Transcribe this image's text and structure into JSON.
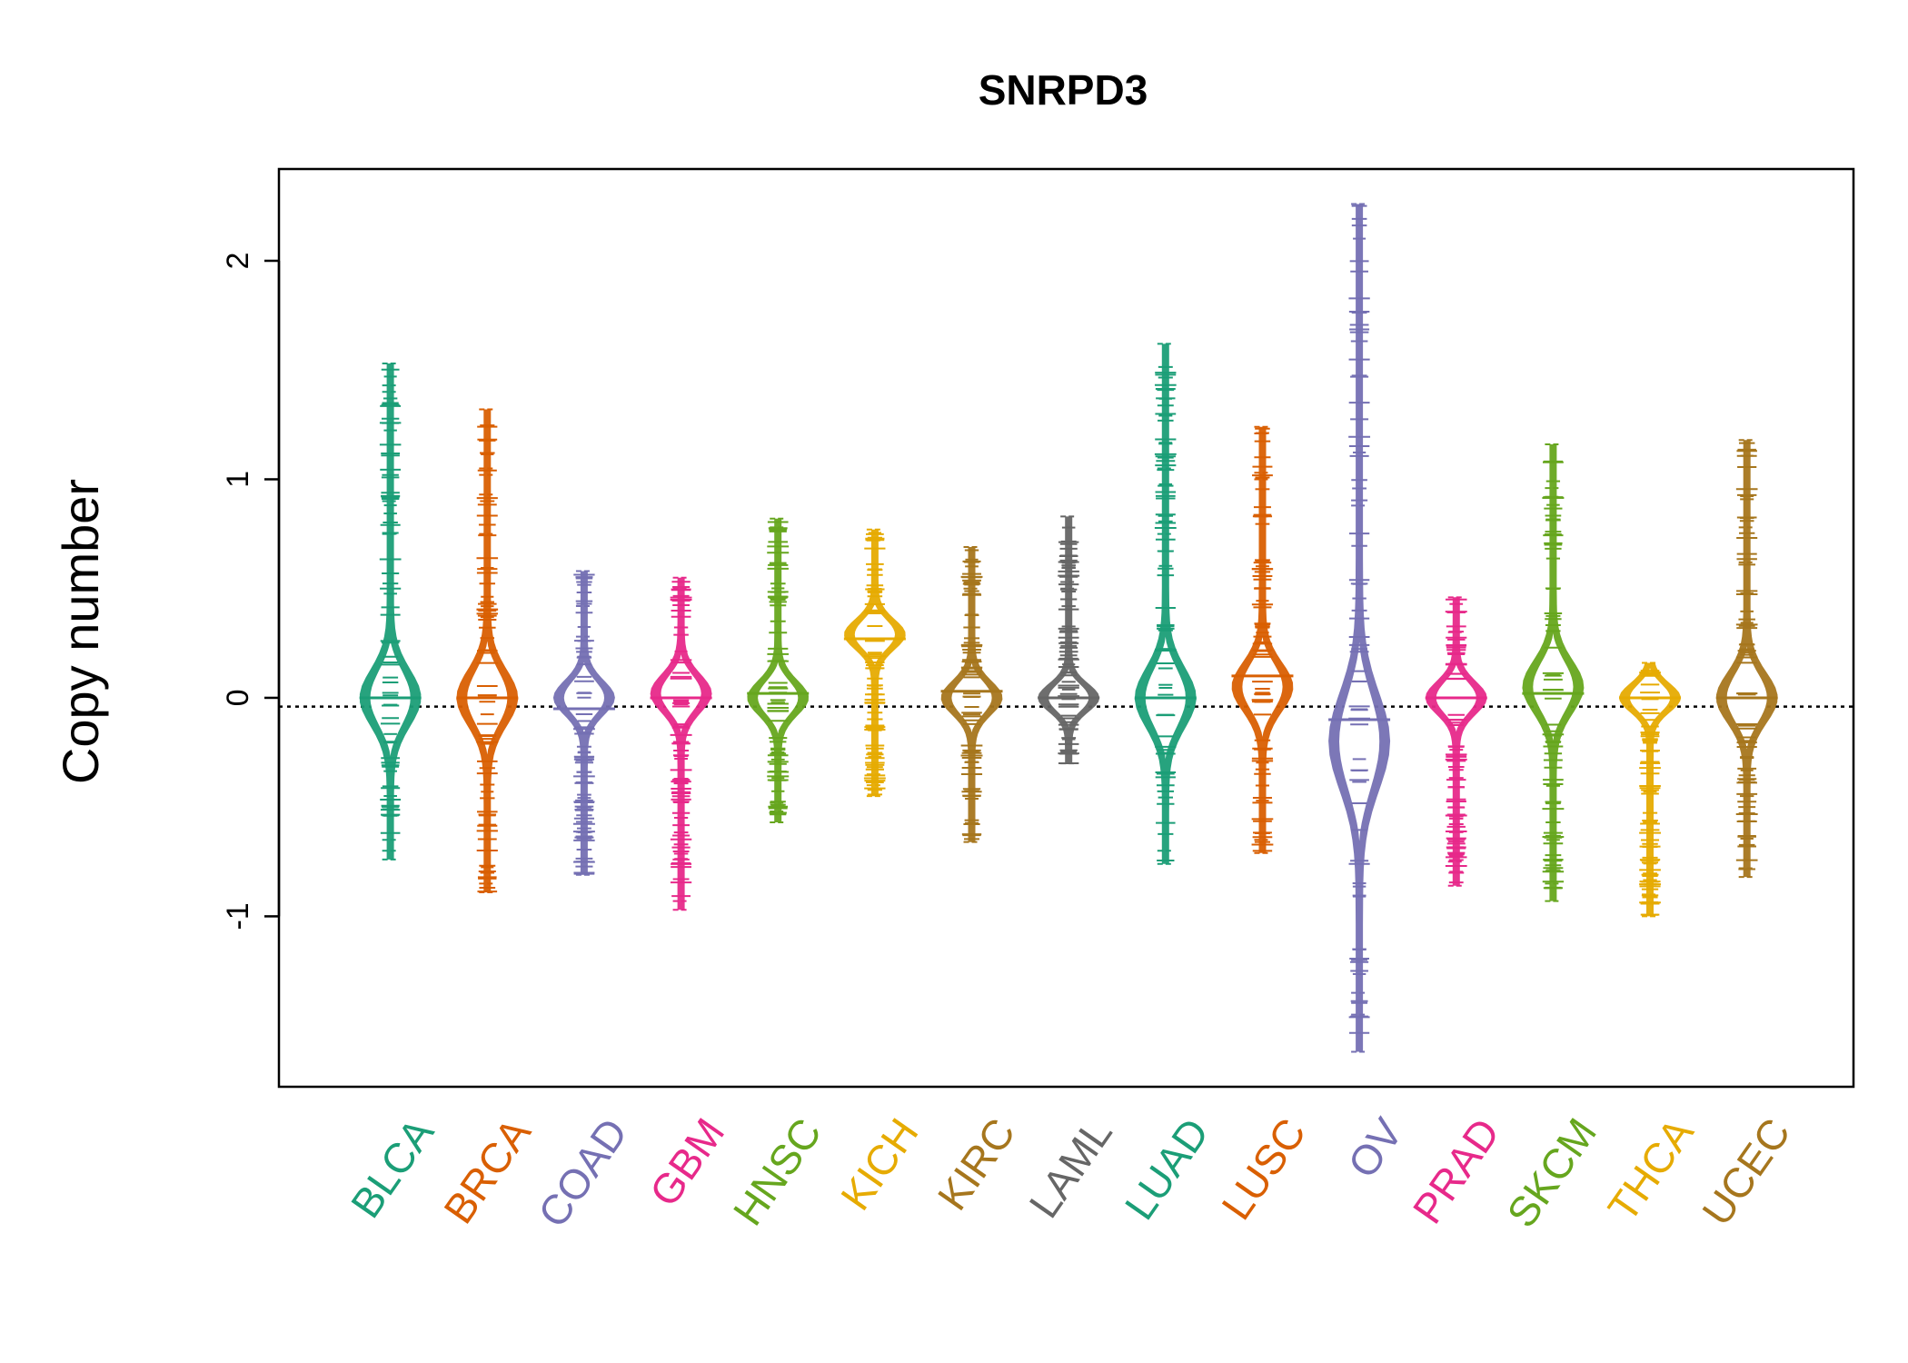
{
  "chart_data": {
    "type": "beanplot",
    "title": "SNRPD3",
    "xlabel": "",
    "ylabel": "Copy number",
    "ylim": [
      -1.78,
      2.42
    ],
    "yticks": [
      -1,
      0,
      1,
      2
    ],
    "ytick_labels": [
      "-1",
      "0",
      "1",
      "2"
    ],
    "reference_line": -0.04,
    "grid": false,
    "legend": "none",
    "categories": [
      "BLCA",
      "BRCA",
      "COAD",
      "GBM",
      "HNSC",
      "KICH",
      "KIRC",
      "LAML",
      "LUAD",
      "LUSC",
      "OV",
      "PRAD",
      "SKCM",
      "THCA",
      "UCEC"
    ],
    "colors": [
      "#1B9E77",
      "#D95F02",
      "#7570B3",
      "#E7298A",
      "#66A61E",
      "#E6AB02",
      "#A6761D",
      "#666666",
      "#1B9E77",
      "#D95F02",
      "#7570B3",
      "#E7298A",
      "#66A61E",
      "#E6AB02",
      "#A6761D"
    ],
    "series": [
      {
        "category": "BLCA",
        "min": -0.74,
        "max": 1.53,
        "median": 0.0,
        "mode": 0.0,
        "extreme_points": [
          1.53,
          1.43,
          1.4,
          0.92,
          0.9,
          0.75,
          -0.65,
          -0.7,
          -0.74
        ]
      },
      {
        "category": "BRCA",
        "min": -0.89,
        "max": 1.32,
        "median": 0.0,
        "mode": 0.0,
        "extreme_points": [
          1.32,
          1.05,
          1.02,
          0.93,
          0.75,
          -0.85,
          -0.89
        ]
      },
      {
        "category": "COAD",
        "min": -0.81,
        "max": 0.58,
        "median": -0.05,
        "mode": 0.0,
        "extreme_points": [
          0.58,
          0.42,
          0.28,
          -0.75,
          -0.81
        ]
      },
      {
        "category": "GBM",
        "min": -0.97,
        "max": 0.55,
        "median": 0.0,
        "mode": 0.02,
        "extreme_points": [
          0.55,
          0.5,
          -0.93,
          -0.97
        ]
      },
      {
        "category": "HNSC",
        "min": -0.57,
        "max": 0.82,
        "median": 0.02,
        "mode": 0.0,
        "extreme_points": [
          0.82,
          0.78,
          -0.48,
          -0.52,
          -0.57
        ]
      },
      {
        "category": "KICH",
        "min": -0.45,
        "max": 0.77,
        "median": 0.27,
        "mode": 0.29,
        "extreme_points": [
          0.77,
          0.72,
          -0.35,
          -0.4,
          -0.45
        ]
      },
      {
        "category": "KIRC",
        "min": -0.66,
        "max": 0.69,
        "median": 0.03,
        "mode": 0.0,
        "extreme_points": [
          0.69,
          0.5,
          -0.45,
          -0.66
        ]
      },
      {
        "category": "LAML",
        "min": -0.3,
        "max": 0.83,
        "median": 0.0,
        "mode": 0.0,
        "extreme_points": [
          0.83,
          0.53,
          0.5,
          -0.25,
          -0.3
        ]
      },
      {
        "category": "LUAD",
        "min": -0.76,
        "max": 1.62,
        "median": 0.0,
        "mode": 0.0,
        "extreme_points": [
          1.62,
          1.05,
          0.75,
          -0.7,
          -0.76
        ]
      },
      {
        "category": "LUSC",
        "min": -0.71,
        "max": 1.24,
        "median": 0.1,
        "mode": 0.05,
        "extreme_points": [
          1.24,
          1.21,
          1.03,
          1.0,
          0.83,
          -0.65,
          -0.71
        ]
      },
      {
        "category": "OV",
        "min": -1.62,
        "max": 2.26,
        "median": -0.1,
        "mode": -0.2,
        "extreme_points": [
          2.26,
          0.88,
          -1.2,
          -1.35,
          -1.45,
          -1.62
        ]
      },
      {
        "category": "PRAD",
        "min": -0.86,
        "max": 0.46,
        "median": 0.0,
        "mode": 0.0,
        "extreme_points": [
          0.46,
          0.3,
          -0.75,
          -0.86
        ]
      },
      {
        "category": "SKCM",
        "min": -0.93,
        "max": 1.16,
        "median": 0.02,
        "mode": 0.05,
        "extreme_points": [
          1.16,
          0.96,
          0.92,
          -0.85,
          -0.93
        ]
      },
      {
        "category": "THCA",
        "min": -1.0,
        "max": 0.16,
        "median": 0.0,
        "mode": 0.0,
        "extreme_points": [
          0.16,
          -0.9,
          -1.0
        ]
      },
      {
        "category": "UCEC",
        "min": -0.82,
        "max": 1.18,
        "median": 0.0,
        "mode": 0.0,
        "extreme_points": [
          1.18,
          0.78,
          0.62,
          -0.78,
          -0.82
        ]
      }
    ]
  }
}
